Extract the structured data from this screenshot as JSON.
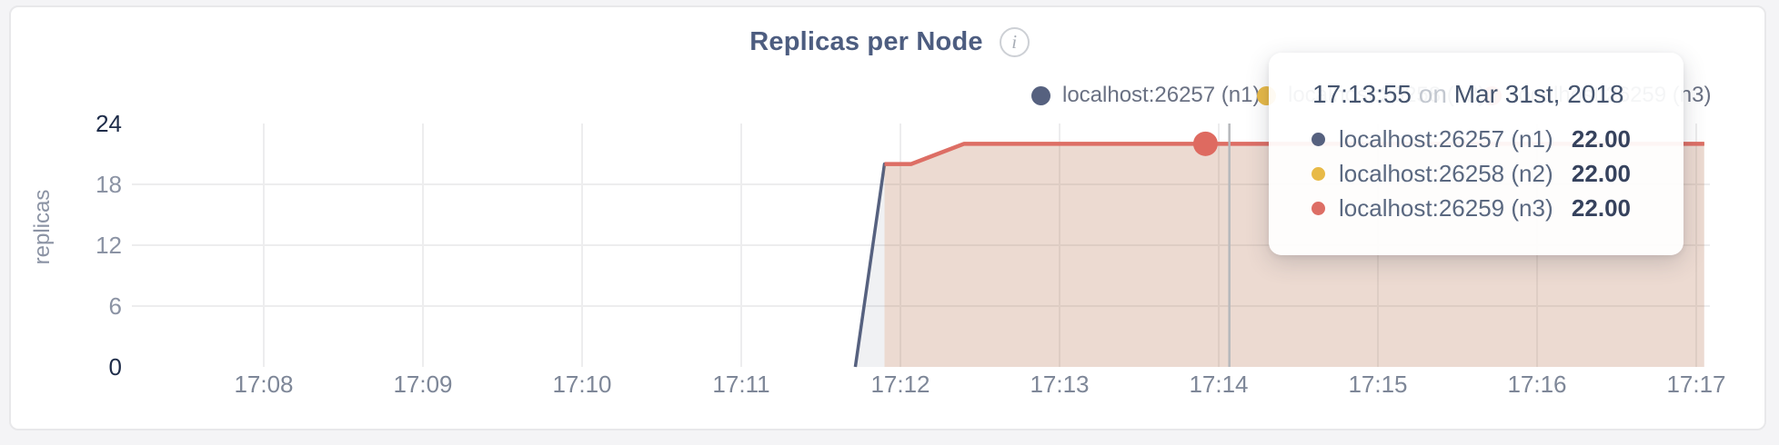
{
  "header": {
    "title": "Replicas per Node",
    "info_icon_glyph": "i"
  },
  "y_axis": {
    "title": "replicas",
    "ticks": [
      {
        "label": "0",
        "value": 0,
        "emphasis": true
      },
      {
        "label": "6",
        "value": 6,
        "emphasis": false
      },
      {
        "label": "12",
        "value": 12,
        "emphasis": false
      },
      {
        "label": "18",
        "value": 18,
        "emphasis": false
      },
      {
        "label": "24",
        "value": 24,
        "emphasis": true
      }
    ]
  },
  "x_axis": {
    "ticks": [
      "17:08",
      "17:09",
      "17:10",
      "17:11",
      "17:12",
      "17:13",
      "17:14",
      "17:15",
      "17:16",
      "17:17"
    ]
  },
  "legend": [
    {
      "label": "localhost:26257 (n1)",
      "color": "#56617f"
    },
    {
      "label": "localhost:26258 (n2)",
      "color": "#e8ba47"
    },
    {
      "label": "localhost:26259 (n3)",
      "color": "#dd6e65"
    }
  ],
  "tooltip": {
    "time": "17:13:55",
    "on_word": "on",
    "date": "Mar 31st, 2018",
    "rows": [
      {
        "label": "localhost:26257 (n1)",
        "value": "22.00",
        "color": "#56617f"
      },
      {
        "label": "localhost:26258 (n2)",
        "value": "22.00",
        "color": "#e8ba47"
      },
      {
        "label": "localhost:26259 (n3)",
        "value": "22.00",
        "color": "#dd6e65"
      }
    ]
  },
  "chart_data": {
    "type": "area",
    "title": "Replicas per Node",
    "xlabel": "",
    "ylabel": "replicas",
    "ylim": [
      0,
      24
    ],
    "y_gridlines": [
      6,
      12,
      18
    ],
    "x_ticks": [
      "17:08",
      "17:09",
      "17:10",
      "17:11",
      "17:12",
      "17:13",
      "17:14",
      "17:15",
      "17:16",
      "17:17"
    ],
    "x_range": [
      "17:07:12",
      "17:17:05"
    ],
    "grid": true,
    "legend_position": "top-right",
    "series": [
      {
        "name": "localhost:26257 (n1)",
        "color": "#56617f",
        "fill": "rgba(86,97,127,0.09)",
        "stroke_width": 3.5,
        "points": [
          [
            "17:11:43",
            0
          ],
          [
            "17:11:54",
            20
          ],
          [
            "17:12:04",
            20
          ],
          [
            "17:12:24",
            22
          ],
          [
            "17:17:03",
            22
          ]
        ]
      },
      {
        "name": "localhost:26258 (n2)",
        "color": "#e8ba47",
        "fill": "rgba(232,186,71,0.09)",
        "stroke_width": 4,
        "points": [
          [
            "17:11:54",
            20
          ],
          [
            "17:12:04",
            20
          ],
          [
            "17:12:24",
            22
          ],
          [
            "17:17:03",
            22
          ]
        ]
      },
      {
        "name": "localhost:26259 (n3)",
        "color": "#dd6e65",
        "fill": "rgba(221,110,101,0.14)",
        "stroke_width": 4.5,
        "points": [
          [
            "17:11:54",
            20
          ],
          [
            "17:12:04",
            20
          ],
          [
            "17:12:24",
            22
          ],
          [
            "17:17:03",
            22
          ]
        ]
      }
    ],
    "hover": {
      "time": "17:13:55",
      "value": 22,
      "series": "localhost:26259 (n3)",
      "crosshair_time": "17:14:04",
      "dot_color": "#de6a60",
      "crosshair_color": "#b6b8bc"
    },
    "grid_color": "#ededee"
  }
}
